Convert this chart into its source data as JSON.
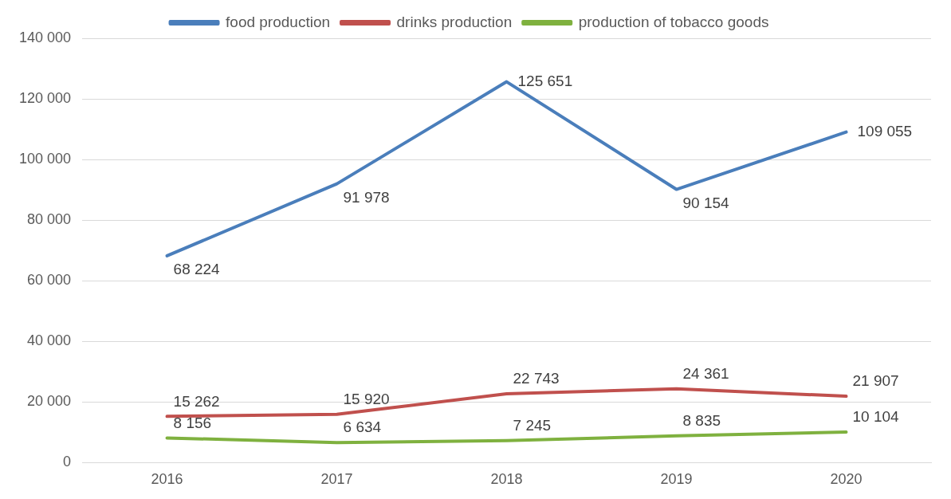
{
  "chart_data": {
    "type": "line",
    "categories": [
      "2016",
      "2017",
      "2018",
      "2019",
      "2020"
    ],
    "series": [
      {
        "name": "food production",
        "color": "#4a7ebb",
        "values": [
          68224,
          91978,
          125651,
          90154,
          109055
        ],
        "value_labels": [
          "68 224",
          "91 978",
          "125 651",
          "90 154",
          "109 055"
        ]
      },
      {
        "name": "drinks production",
        "color": "#c0504d",
        "values": [
          15262,
          15920,
          22743,
          24361,
          21907
        ],
        "value_labels": [
          "15 262",
          "15 920",
          "22 743",
          "24 361",
          "21 907"
        ]
      },
      {
        "name": "production of tobacco goods",
        "color": "#7fb13f",
        "values": [
          8156,
          6634,
          7245,
          8835,
          10104
        ],
        "value_labels": [
          "8 156",
          "6 634",
          "7 245",
          "8 835",
          "10 104"
        ]
      }
    ],
    "ylim": [
      0,
      140000
    ],
    "yticks": [
      {
        "value": 0,
        "label": "0"
      },
      {
        "value": 20000,
        "label": "20 000"
      },
      {
        "value": 40000,
        "label": "40 000"
      },
      {
        "value": 60000,
        "label": "60 000"
      },
      {
        "value": 80000,
        "label": "80 000"
      },
      {
        "value": 100000,
        "label": "100 000"
      },
      {
        "value": 120000,
        "label": "120 000"
      },
      {
        "value": 140000,
        "label": "140 000"
      }
    ],
    "grid": "y",
    "legend": "top",
    "marker": "none",
    "line_style": "solid"
  }
}
